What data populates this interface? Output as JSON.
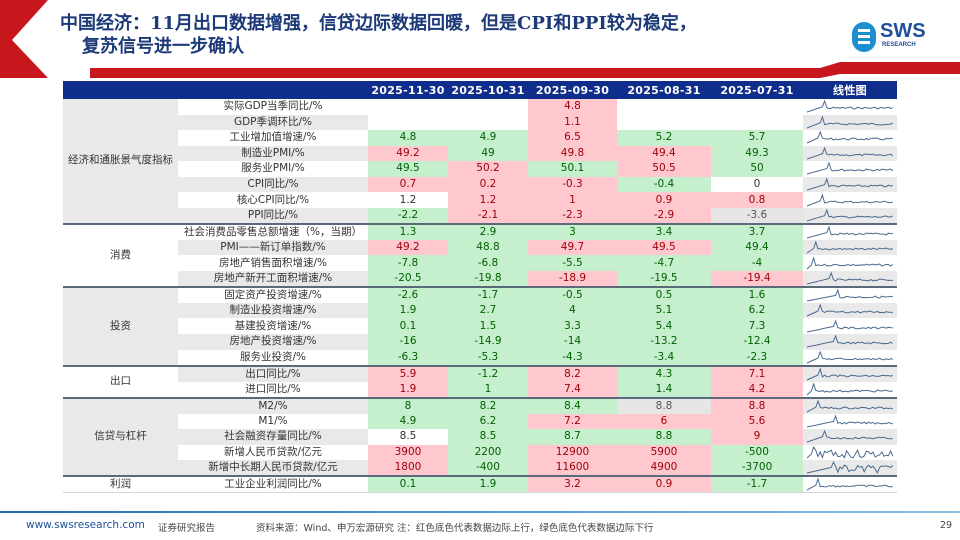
{
  "header": {
    "title_line1": "中国经济：11月出口数据增强，信贷边际数据回暖，但是CPI和PPI较为稳定，",
    "title_line2": "复苏信号进一步确认",
    "logo_text": "SWS",
    "logo_sub": "RESEARCH"
  },
  "colors": {
    "accent_red": "#c8161d",
    "header_blue": "#0f2d8a",
    "up_fill": "#ffc7ce",
    "up_text": "#9c0006",
    "down_fill": "#c6efce",
    "down_text": "#006100"
  },
  "table": {
    "columns": [
      "",
      "",
      "2025-11-30",
      "2025-10-31",
      "2025-09-30",
      "2025-08-31",
      "2025-07-31",
      "线性图"
    ],
    "groups": [
      {
        "name": "经济和通胀景气度指标",
        "rows": [
          {
            "label": "实际GDP当季同比/%",
            "cells": [
              [
                "",
                "w"
              ],
              [
                "",
                "w"
              ],
              [
                "4.8",
                "r"
              ],
              [
                "",
                "w"
              ],
              [
                "",
                "w"
              ]
            ]
          },
          {
            "label": "GDP季调环比/%",
            "cells": [
              [
                "",
                "w"
              ],
              [
                "",
                "w"
              ],
              [
                "1.1",
                "r"
              ],
              [
                "",
                "w"
              ],
              [
                "",
                "w"
              ]
            ]
          },
          {
            "label": "工业增加值增速/%",
            "cells": [
              [
                "4.8",
                "g"
              ],
              [
                "4.9",
                "g"
              ],
              [
                "6.5",
                "r"
              ],
              [
                "5.2",
                "g"
              ],
              [
                "5.7",
                "g"
              ]
            ]
          },
          {
            "label": "制造业PMI/%",
            "cells": [
              [
                "49.2",
                "r"
              ],
              [
                "49",
                "g"
              ],
              [
                "49.8",
                "r"
              ],
              [
                "49.4",
                "r"
              ],
              [
                "49.3",
                "g"
              ]
            ]
          },
          {
            "label": "服务业PMI/%",
            "cells": [
              [
                "49.5",
                "g"
              ],
              [
                "50.2",
                "r"
              ],
              [
                "50.1",
                "g"
              ],
              [
                "50.5",
                "r"
              ],
              [
                "50",
                "g"
              ]
            ]
          },
          {
            "label": "CPI同比/%",
            "cells": [
              [
                "0.7",
                "r"
              ],
              [
                "0.2",
                "r"
              ],
              [
                "-0.3",
                "r"
              ],
              [
                "-0.4",
                "g"
              ],
              [
                "0",
                "w"
              ]
            ]
          },
          {
            "label": "核心CPI同比/%",
            "cells": [
              [
                "1.2",
                "w"
              ],
              [
                "1.2",
                "r"
              ],
              [
                "1",
                "r"
              ],
              [
                "0.9",
                "r"
              ],
              [
                "0.8",
                "r"
              ]
            ]
          },
          {
            "label": "PPI同比/%",
            "cells": [
              [
                "-2.2",
                "g"
              ],
              [
                "-2.1",
                "r"
              ],
              [
                "-2.3",
                "r"
              ],
              [
                "-2.9",
                "r"
              ],
              [
                "-3.6",
                "y"
              ]
            ]
          }
        ]
      },
      {
        "name": "消费",
        "rows": [
          {
            "label": "社会消费品零售总额增速（%，当期）",
            "cells": [
              [
                "1.3",
                "g"
              ],
              [
                "2.9",
                "g"
              ],
              [
                "3",
                "g"
              ],
              [
                "3.4",
                "g"
              ],
              [
                "3.7",
                "g"
              ]
            ]
          },
          {
            "label": "PMI——新订单指数/%",
            "cells": [
              [
                "49.2",
                "r"
              ],
              [
                "48.8",
                "g"
              ],
              [
                "49.7",
                "r"
              ],
              [
                "49.5",
                "r"
              ],
              [
                "49.4",
                "g"
              ]
            ]
          },
          {
            "label": "房地产销售面积增速/%",
            "cells": [
              [
                "-7.8",
                "g"
              ],
              [
                "-6.8",
                "g"
              ],
              [
                "-5.5",
                "g"
              ],
              [
                "-4.7",
                "g"
              ],
              [
                "-4",
                "g"
              ]
            ]
          },
          {
            "label": "房地产新开工面积增速/%",
            "cells": [
              [
                "-20.5",
                "g"
              ],
              [
                "-19.8",
                "g"
              ],
              [
                "-18.9",
                "r"
              ],
              [
                "-19.5",
                "g"
              ],
              [
                "-19.4",
                "r"
              ]
            ]
          }
        ]
      },
      {
        "name": "投资",
        "rows": [
          {
            "label": "固定资产投资增速/%",
            "cells": [
              [
                "-2.6",
                "g"
              ],
              [
                "-1.7",
                "g"
              ],
              [
                "-0.5",
                "g"
              ],
              [
                "0.5",
                "g"
              ],
              [
                "1.6",
                "g"
              ]
            ]
          },
          {
            "label": "制造业投资增速/%",
            "cells": [
              [
                "1.9",
                "g"
              ],
              [
                "2.7",
                "g"
              ],
              [
                "4",
                "g"
              ],
              [
                "5.1",
                "g"
              ],
              [
                "6.2",
                "g"
              ]
            ]
          },
          {
            "label": "基建投资增速/%",
            "cells": [
              [
                "0.1",
                "g"
              ],
              [
                "1.5",
                "g"
              ],
              [
                "3.3",
                "g"
              ],
              [
                "5.4",
                "g"
              ],
              [
                "7.3",
                "g"
              ]
            ]
          },
          {
            "label": "房地产投资增速/%",
            "cells": [
              [
                "-16",
                "g"
              ],
              [
                "-14.9",
                "g"
              ],
              [
                "-14",
                "g"
              ],
              [
                "-13.2",
                "g"
              ],
              [
                "-12.4",
                "g"
              ]
            ]
          },
          {
            "label": "服务业投资/%",
            "cells": [
              [
                "-6.3",
                "g"
              ],
              [
                "-5.3",
                "g"
              ],
              [
                "-4.3",
                "g"
              ],
              [
                "-3.4",
                "g"
              ],
              [
                "-2.3",
                "g"
              ]
            ]
          }
        ]
      },
      {
        "name": "出口",
        "rows": [
          {
            "label": "出口同比/%",
            "cells": [
              [
                "5.9",
                "r"
              ],
              [
                "-1.2",
                "g"
              ],
              [
                "8.2",
                "r"
              ],
              [
                "4.3",
                "g"
              ],
              [
                "7.1",
                "r"
              ]
            ]
          },
          {
            "label": "进口同比/%",
            "cells": [
              [
                "1.9",
                "r"
              ],
              [
                "1",
                "g"
              ],
              [
                "7.4",
                "r"
              ],
              [
                "1.4",
                "g"
              ],
              [
                "4.2",
                "r"
              ]
            ]
          }
        ]
      },
      {
        "name": "信贷与杠杆",
        "rows": [
          {
            "label": "M2/%",
            "cells": [
              [
                "8",
                "g"
              ],
              [
                "8.2",
                "g"
              ],
              [
                "8.4",
                "g"
              ],
              [
                "8.8",
                "y"
              ],
              [
                "8.8",
                "r"
              ]
            ]
          },
          {
            "label": "M1/%",
            "cells": [
              [
                "4.9",
                "g"
              ],
              [
                "6.2",
                "g"
              ],
              [
                "7.2",
                "r"
              ],
              [
                "6",
                "r"
              ],
              [
                "5.6",
                "r"
              ]
            ]
          },
          {
            "label": "社会融资存量同比/%",
            "cells": [
              [
                "8.5",
                "w"
              ],
              [
                "8.5",
                "g"
              ],
              [
                "8.7",
                "g"
              ],
              [
                "8.8",
                "g"
              ],
              [
                "9",
                "r"
              ]
            ]
          },
          {
            "label": "新增人民币贷款/亿元",
            "cells": [
              [
                "3900",
                "r"
              ],
              [
                "2200",
                "g"
              ],
              [
                "12900",
                "r"
              ],
              [
                "5900",
                "r"
              ],
              [
                "-500",
                "g"
              ]
            ]
          },
          {
            "label": "新增中长期人民币贷款/亿元",
            "cells": [
              [
                "1800",
                "r"
              ],
              [
                "-400",
                "g"
              ],
              [
                "11600",
                "r"
              ],
              [
                "4900",
                "r"
              ],
              [
                "-3700",
                "g"
              ]
            ]
          }
        ]
      },
      {
        "name": "利润",
        "rows": [
          {
            "label": "工业企业利润同比/%",
            "cells": [
              [
                "0.1",
                "g"
              ],
              [
                "1.9",
                "g"
              ],
              [
                "3.2",
                "r"
              ],
              [
                "0.9",
                "r"
              ],
              [
                "-1.7",
                "g"
              ]
            ]
          }
        ]
      }
    ]
  },
  "footer": {
    "url": "www.swsresearch.com",
    "doc_type": "证券研究报告",
    "source_note": "资料来源：Wind、申万宏源研究 注：红色底色代表数据边际上行，绿色底色代表数据边际下行",
    "page": "29"
  }
}
